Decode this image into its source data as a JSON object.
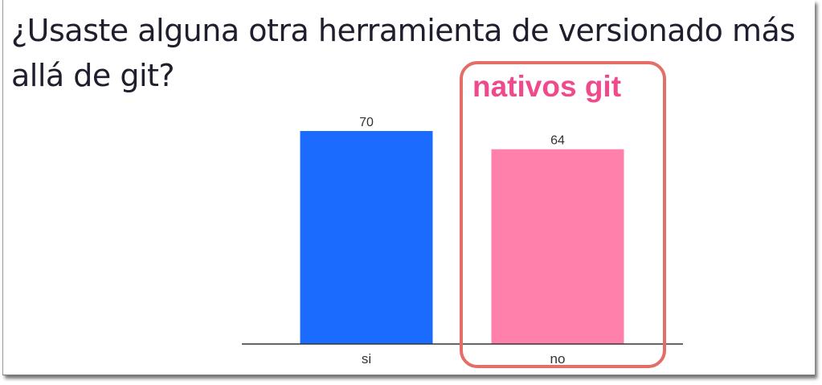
{
  "slide": {
    "title": "¿Usaste alguna otra herramienta de versionado más allá de git?",
    "annotation": "nativos git"
  },
  "colors": {
    "title_text": "#1e1e2c",
    "highlight_border": "#e46d67",
    "annotation_text": "#ef4b8c"
  },
  "chart_data": {
    "type": "bar",
    "categories": [
      "si",
      "no"
    ],
    "values": [
      70,
      64
    ],
    "value_labels": [
      "70",
      "64"
    ],
    "colors": [
      "#1c6bff",
      "#ff80aa"
    ],
    "ylim": [
      0,
      70
    ],
    "grid": false,
    "legend": "none"
  }
}
